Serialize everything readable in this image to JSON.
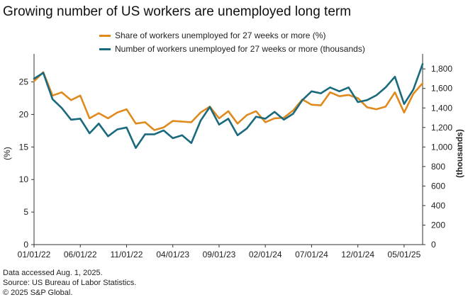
{
  "title": "Growing number of US workers are unemployed long term",
  "colors": {
    "share": "#E08A1E",
    "number": "#1A6A7E",
    "axis": "#333333",
    "text": "#222222"
  },
  "notes": {
    "accessed": "Data accessed Aug. 1, 2025.",
    "source": "Source: US Bureau of Labor Statistics.",
    "copyright": "© 2025 S&P Global."
  },
  "chart_data": {
    "type": "line",
    "title": "Growing number of US workers are unemployed long term",
    "xlabel": "",
    "ylabel": "(%)",
    "y2label": "(thousands)",
    "ylim": [
      0,
      28
    ],
    "y2lim": [
      0,
      1866.7
    ],
    "yticks": [
      0,
      5,
      10,
      15,
      20,
      25
    ],
    "y2ticks": [
      0,
      200,
      400,
      600,
      800,
      1000,
      1200,
      1400,
      1600,
      1800
    ],
    "y2tick_labels": [
      "0",
      "200",
      "400",
      "600",
      "800",
      "1,000",
      "1,200",
      "1,400",
      "1,600",
      "1,800"
    ],
    "xtick_labels": [
      "01/01/22",
      "06/01/22",
      "11/01/22",
      "04/01/23",
      "09/01/23",
      "02/01/24",
      "07/01/24",
      "12/01/24",
      "05/01/25"
    ],
    "xtick_index": [
      0,
      5,
      10,
      15,
      20,
      25,
      30,
      35,
      40
    ],
    "x": [
      "2022-01",
      "2022-02",
      "2022-03",
      "2022-04",
      "2022-05",
      "2022-06",
      "2022-07",
      "2022-08",
      "2022-09",
      "2022-10",
      "2022-11",
      "2022-12",
      "2023-01",
      "2023-02",
      "2023-03",
      "2023-04",
      "2023-05",
      "2023-06",
      "2023-07",
      "2023-08",
      "2023-09",
      "2023-10",
      "2023-11",
      "2023-12",
      "2024-01",
      "2024-02",
      "2024-03",
      "2024-04",
      "2024-05",
      "2024-06",
      "2024-07",
      "2024-08",
      "2024-09",
      "2024-10",
      "2024-11",
      "2024-12",
      "2025-01",
      "2025-02",
      "2025-03",
      "2025-04",
      "2025-05",
      "2025-06",
      "2025-07"
    ],
    "series": [
      {
        "name": "Share of workers unemployed for 27 weeks or more (%)",
        "axis": "left",
        "values": [
          25.1,
          26.5,
          22.9,
          23.4,
          22.2,
          22.9,
          19.4,
          20.2,
          19.4,
          20.3,
          20.8,
          18.6,
          18.8,
          17.6,
          18.0,
          19.0,
          18.9,
          18.8,
          20.3,
          21.2,
          19.4,
          20.5,
          18.6,
          19.9,
          20.5,
          18.8,
          19.4,
          19.5,
          20.6,
          22.3,
          21.5,
          21.4,
          23.4,
          22.8,
          23.0,
          22.5,
          21.1,
          20.8,
          21.2,
          23.4,
          20.3,
          23.2,
          24.8
        ]
      },
      {
        "name": "Number of workers unemployed for 27 weeks or more (thousands)",
        "axis": "right",
        "values": [
          1700,
          1760,
          1490,
          1400,
          1280,
          1290,
          1140,
          1240,
          1110,
          1180,
          1200,
          990,
          1130,
          1130,
          1170,
          1090,
          1120,
          1040,
          1270,
          1410,
          1230,
          1290,
          1120,
          1190,
          1310,
          1290,
          1360,
          1280,
          1340,
          1480,
          1570,
          1550,
          1610,
          1570,
          1610,
          1460,
          1480,
          1530,
          1610,
          1720,
          1440,
          1590,
          1850
        ]
      }
    ]
  }
}
